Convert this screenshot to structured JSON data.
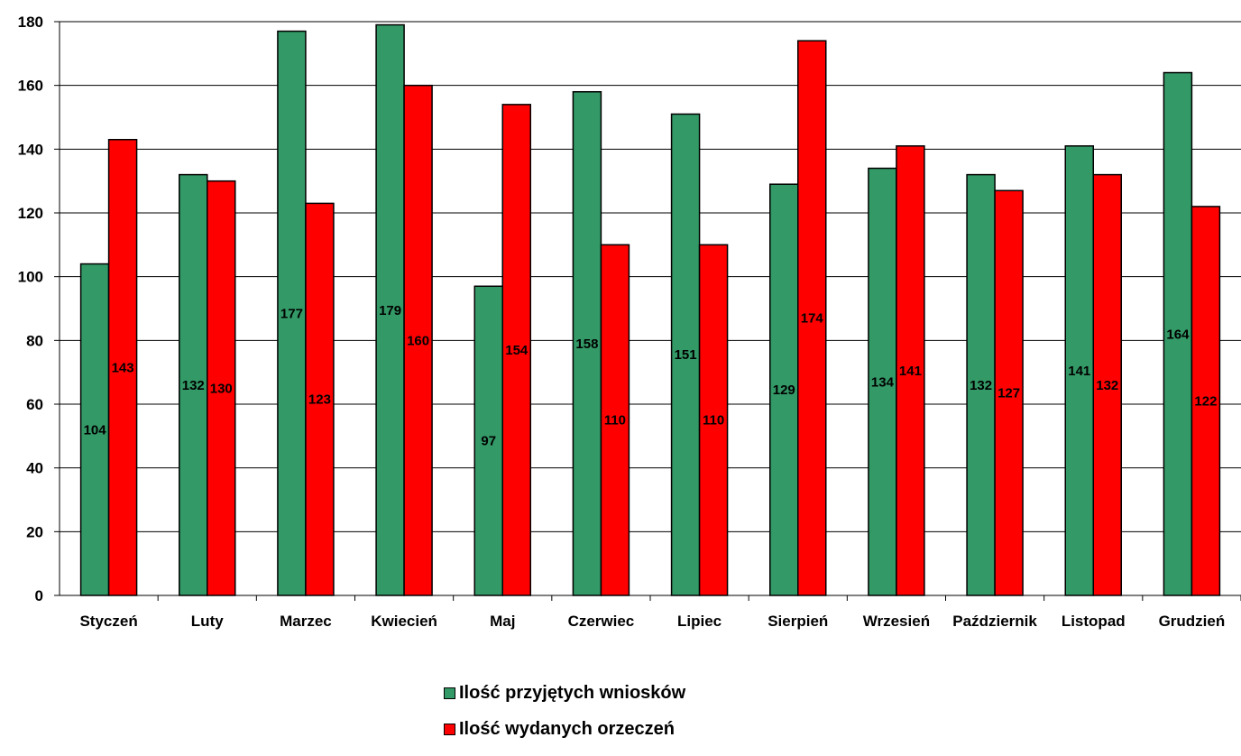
{
  "chart_data": {
    "type": "bar",
    "categories": [
      "Styczeń",
      "Luty",
      "Marzec",
      "Kwiecień",
      "Maj",
      "Czerwiec",
      "Lipiec",
      "Sierpień",
      "Wrzesień",
      "Październik",
      "Listopad",
      "Grudzień"
    ],
    "series": [
      {
        "name": "Ilość przyjętych wniosków",
        "color": "#339966",
        "values": [
          104,
          132,
          177,
          179,
          97,
          158,
          151,
          129,
          134,
          132,
          141,
          164
        ]
      },
      {
        "name": "Ilość wydanych orzeczeń",
        "color": "#FF0000",
        "values": [
          143,
          130,
          123,
          160,
          154,
          110,
          110,
          174,
          141,
          127,
          132,
          122
        ]
      }
    ],
    "ylim": [
      0,
      180
    ],
    "ytick_step": 20,
    "grid": true,
    "data_labels": true,
    "legend_position": "bottom"
  }
}
